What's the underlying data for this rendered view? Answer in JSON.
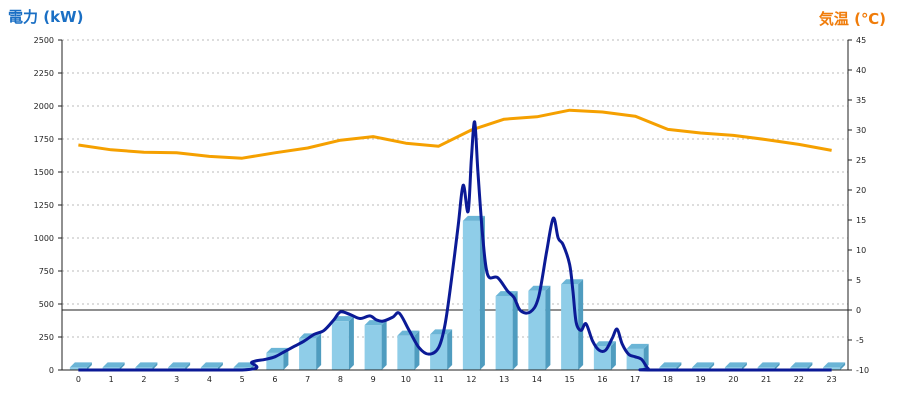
{
  "colors": {
    "power_label": "#1a6fc4",
    "temp_label": "#f07c0a",
    "bar_front": "#8fcde8",
    "bar_side": "#4f9cbf",
    "bar_top": "#6bb5d6",
    "power_line": "#0b1a96",
    "temp_line": "#f5a000",
    "grid": "#bbbbbb",
    "axis": "#222222"
  },
  "chart_data": {
    "type": "bar",
    "left_axis_label": "電力 (kW)",
    "right_axis_label": "気温 (℃)",
    "categories": [
      "0",
      "1",
      "2",
      "3",
      "4",
      "5",
      "6",
      "7",
      "8",
      "9",
      "10",
      "11",
      "12",
      "13",
      "14",
      "15",
      "16",
      "17",
      "18",
      "19",
      "20",
      "21",
      "22",
      "23"
    ],
    "ylim_left": [
      0,
      2500
    ],
    "ytick_step_left": 250,
    "yticks_left": [
      "0",
      "250",
      "500",
      "750",
      "1000",
      "1250",
      "1500",
      "1750",
      "2000",
      "2250",
      "2500"
    ],
    "ylim_right": [
      -10,
      45
    ],
    "yticks_right": [
      "-10",
      "-5",
      "0",
      "5",
      "10",
      "15",
      "20",
      "25",
      "30",
      "35",
      "40",
      "45"
    ],
    "grid": true,
    "reference_line_temp": 0,
    "bars": {
      "unit": "kW",
      "values": [
        20,
        20,
        20,
        20,
        20,
        20,
        130,
        240,
        370,
        340,
        260,
        270,
        1130,
        560,
        600,
        650,
        180,
        160,
        20,
        20,
        20,
        20,
        20,
        20
      ]
    },
    "power_line": {
      "unit": "kW",
      "points": [
        [
          0,
          0
        ],
        [
          5,
          0
        ],
        [
          5.3,
          60
        ],
        [
          5.7,
          80
        ],
        [
          6,
          100
        ],
        [
          6.3,
          140
        ],
        [
          6.6,
          180
        ],
        [
          6.9,
          220
        ],
        [
          7.2,
          270
        ],
        [
          7.5,
          300
        ],
        [
          7.8,
          380
        ],
        [
          8.0,
          440
        ],
        [
          8.3,
          420
        ],
        [
          8.6,
          390
        ],
        [
          8.9,
          410
        ],
        [
          9.1,
          380
        ],
        [
          9.3,
          370
        ],
        [
          9.6,
          400
        ],
        [
          9.8,
          430
        ],
        [
          10.1,
          300
        ],
        [
          10.4,
          170
        ],
        [
          10.7,
          120
        ],
        [
          11.0,
          170
        ],
        [
          11.2,
          350
        ],
        [
          11.4,
          700
        ],
        [
          11.6,
          1100
        ],
        [
          11.75,
          1400
        ],
        [
          11.9,
          1200
        ],
        [
          12.0,
          1600
        ],
        [
          12.1,
          1880
        ],
        [
          12.2,
          1500
        ],
        [
          12.35,
          1000
        ],
        [
          12.5,
          720
        ],
        [
          12.8,
          700
        ],
        [
          13.1,
          600
        ],
        [
          13.3,
          550
        ],
        [
          13.5,
          450
        ],
        [
          13.8,
          440
        ],
        [
          14.05,
          550
        ],
        [
          14.3,
          900
        ],
        [
          14.5,
          1150
        ],
        [
          14.65,
          1000
        ],
        [
          14.8,
          950
        ],
        [
          15.0,
          800
        ],
        [
          15.1,
          600
        ],
        [
          15.2,
          360
        ],
        [
          15.35,
          300
        ],
        [
          15.5,
          350
        ],
        [
          15.7,
          220
        ],
        [
          15.9,
          150
        ],
        [
          16.1,
          150
        ],
        [
          16.3,
          240
        ],
        [
          16.45,
          310
        ],
        [
          16.6,
          200
        ],
        [
          16.8,
          120
        ],
        [
          17.0,
          100
        ],
        [
          17.2,
          80
        ],
        [
          17.4,
          10
        ],
        [
          17.6,
          0
        ],
        [
          23,
          0
        ]
      ]
    },
    "temp_line": {
      "unit": "℃",
      "points": [
        [
          0,
          27.5
        ],
        [
          1,
          26.7
        ],
        [
          2,
          26.3
        ],
        [
          3,
          26.2
        ],
        [
          4,
          25.6
        ],
        [
          5,
          25.3
        ],
        [
          6,
          26.2
        ],
        [
          7,
          27.0
        ],
        [
          8,
          28.3
        ],
        [
          9,
          28.9
        ],
        [
          10,
          27.8
        ],
        [
          11,
          27.3
        ],
        [
          12,
          30.0
        ],
        [
          13,
          31.8
        ],
        [
          14,
          32.2
        ],
        [
          15,
          33.3
        ],
        [
          16,
          33.0
        ],
        [
          17,
          32.3
        ],
        [
          18,
          30.1
        ],
        [
          19,
          29.5
        ],
        [
          20,
          29.1
        ],
        [
          21,
          28.4
        ],
        [
          22,
          27.6
        ],
        [
          23,
          26.6
        ]
      ]
    }
  }
}
